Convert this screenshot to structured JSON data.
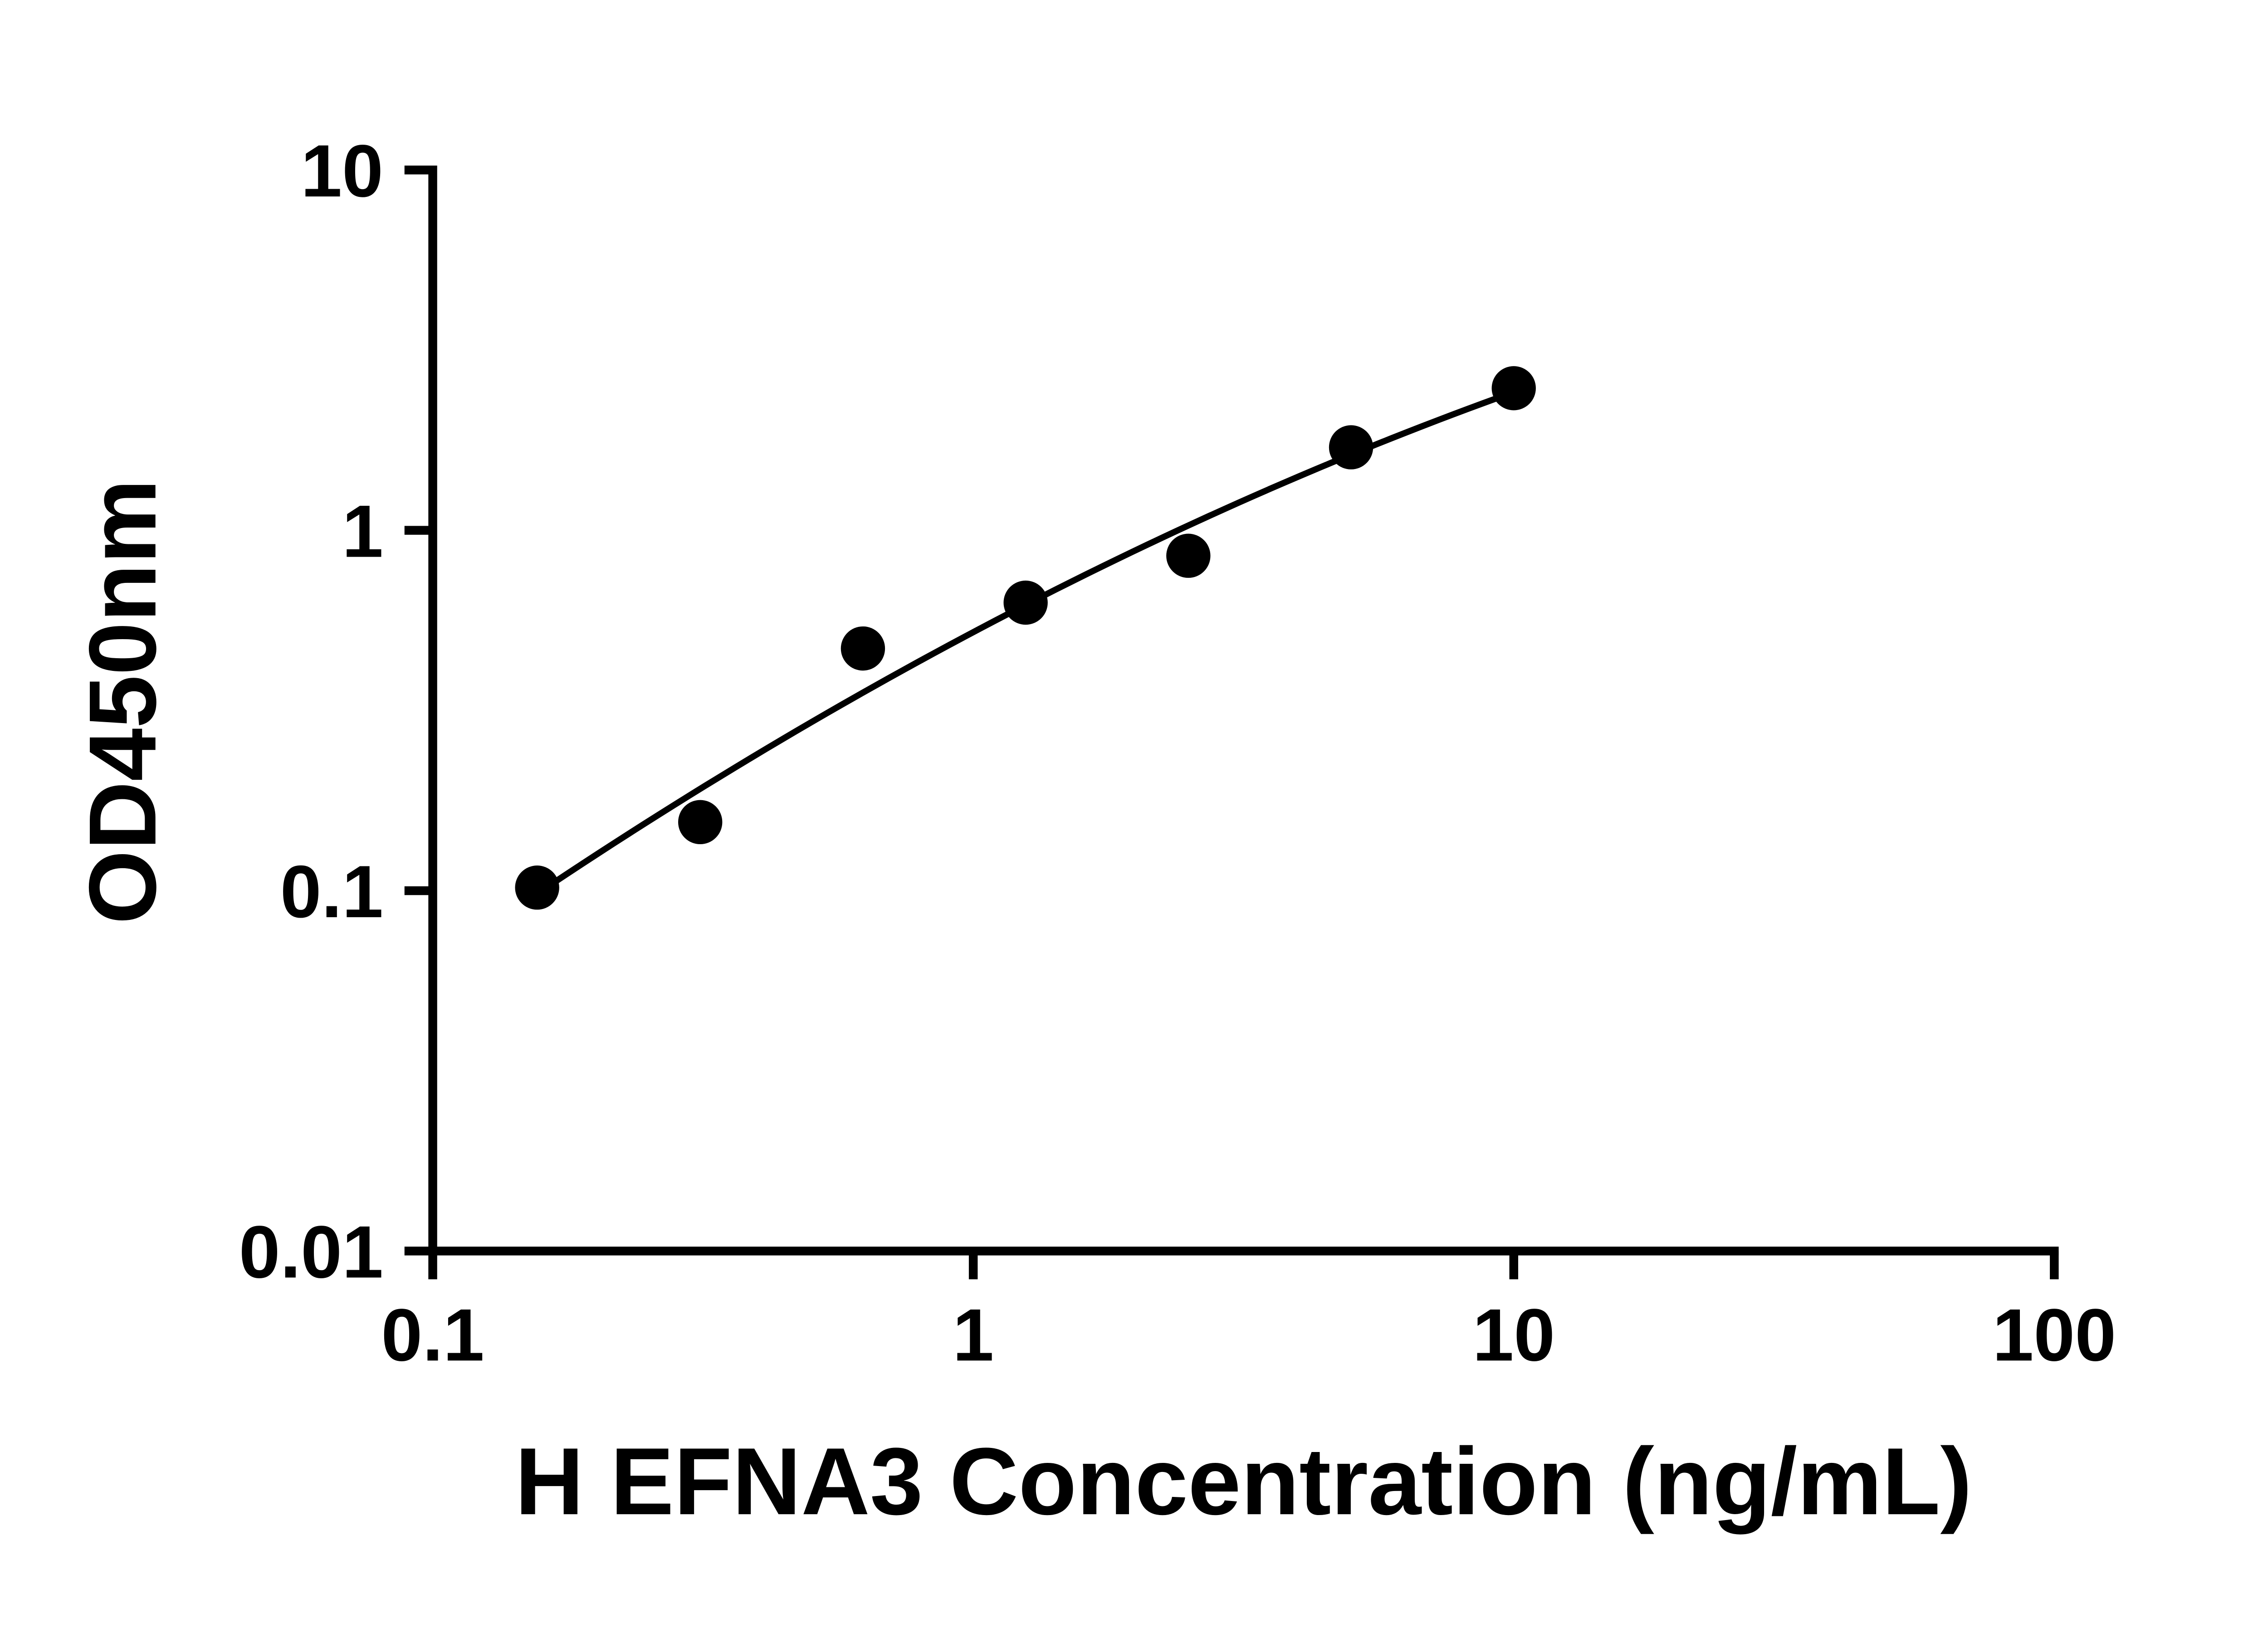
{
  "chart_data": {
    "type": "scatter",
    "title": "",
    "xlabel": "H EFNA3 Concentration (ng/mL)",
    "ylabel": "OD450nm",
    "x_scale": "log10",
    "y_scale": "log10",
    "xlim": [
      0.1,
      100
    ],
    "ylim": [
      0.01,
      10
    ],
    "x_ticks": [
      0.1,
      1,
      10,
      100
    ],
    "x_tick_labels": [
      "0.1",
      "1",
      "10",
      "100"
    ],
    "y_ticks": [
      0.01,
      0.1,
      1,
      10
    ],
    "y_tick_labels": [
      "0.01",
      "0.1",
      "1",
      "10"
    ],
    "grid": false,
    "legend": false,
    "background": "#ffffff",
    "marker_color": "#000000",
    "line_color": "#000000",
    "points": {
      "x": [
        0.156,
        0.3125,
        0.625,
        1.25,
        2.5,
        5,
        10
      ],
      "y": [
        0.102,
        0.155,
        0.47,
        0.63,
        0.85,
        1.7,
        2.48
      ]
    },
    "trend_line": {
      "fit": "quadratic-in-log-log",
      "x_range": [
        0.156,
        10
      ]
    }
  }
}
